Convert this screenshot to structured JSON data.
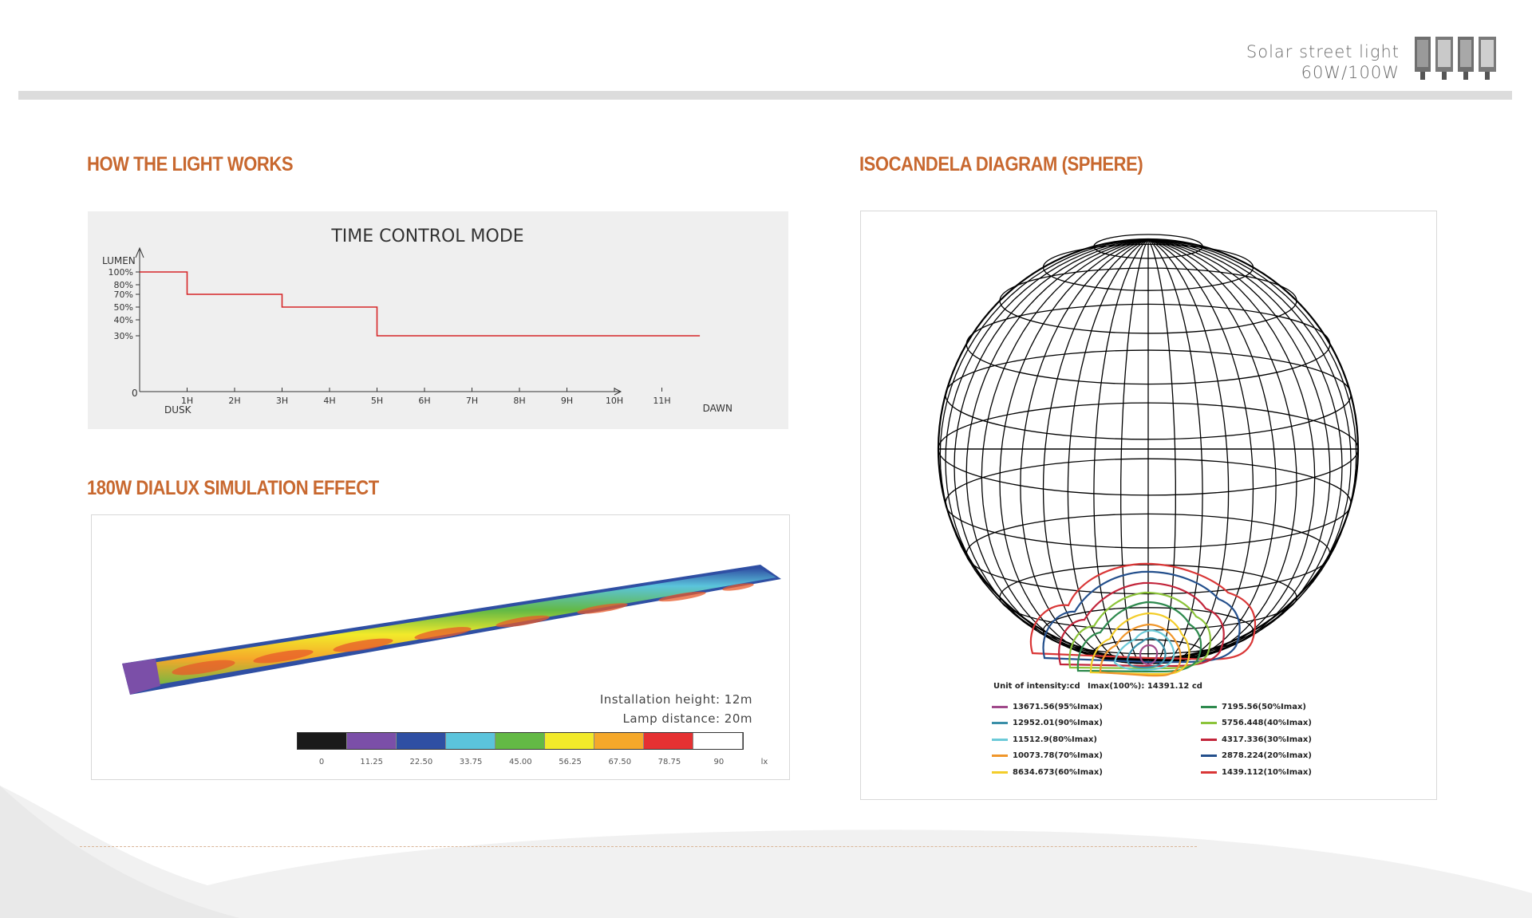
{
  "brand": {
    "line1": "Solar street light",
    "line2": "60W/100W"
  },
  "sections": {
    "how_light_works": "HOW THE LIGHT WORKS",
    "dialux": "180W DIALUX SIMULATION EFFECT",
    "isocandela": "ISOCANDELA DIAGRAM (SPHERE)"
  },
  "chart_data": {
    "type": "line",
    "title": "TIME CONTROL MODE",
    "ylabel": "LUMEN",
    "y_ticks": [
      "100%",
      "80%",
      "70%",
      "50%",
      "40%",
      "30%"
    ],
    "x_ticks": [
      "1H",
      "2H",
      "3H",
      "4H",
      "5H",
      "6H",
      "7H",
      "8H",
      "9H",
      "10H",
      "11H"
    ],
    "origin_label": "0",
    "x_start_label": "DUSK",
    "x_end_label": "DAWN",
    "series": [
      {
        "x": [
          0,
          1,
          1,
          3,
          3,
          5,
          5,
          11.8
        ],
        "y": [
          100,
          100,
          70,
          70,
          50,
          50,
          30,
          30
        ],
        "color": "#d62728"
      }
    ]
  },
  "dialux": {
    "install_height": "Installation height: 12m",
    "lamp_distance": "Lamp distance: 20m",
    "scale_labels": [
      "0",
      "11.25",
      "22.50",
      "33.75",
      "45.00",
      "56.25",
      "67.50",
      "78.75",
      "90",
      "lx"
    ],
    "scale_colors": [
      "#1a1a1a",
      "#7b4fa8",
      "#2f4fa3",
      "#5bc4dc",
      "#63b945",
      "#f2ea2a",
      "#f5a82a",
      "#e53132",
      "#ffffff"
    ]
  },
  "isocandela": {
    "unit_label": "Unit of intensity:cd",
    "imax_label": "Imax(100%): 14391.12 cd",
    "legend_left": [
      {
        "label": "13671.56(95%Imax)",
        "color": "#a0498a"
      },
      {
        "label": "12952.01(90%Imax)",
        "color": "#3a8fa8"
      },
      {
        "label": "11512.9(80%Imax)",
        "color": "#6ccad8"
      },
      {
        "label": "10073.78(70%Imax)",
        "color": "#f0962a"
      },
      {
        "label": "8634.673(60%Imax)",
        "color": "#f3cd2a"
      }
    ],
    "legend_right": [
      {
        "label": "7195.56(50%Imax)",
        "color": "#2e8a4e"
      },
      {
        "label": "5756.448(40%Imax)",
        "color": "#8cc43a"
      },
      {
        "label": "4317.336(30%Imax)",
        "color": "#c2243a"
      },
      {
        "label": "2878.224(20%Imax)",
        "color": "#234f8c"
      },
      {
        "label": "1439.112(10%Imax)",
        "color": "#d93636"
      }
    ]
  }
}
